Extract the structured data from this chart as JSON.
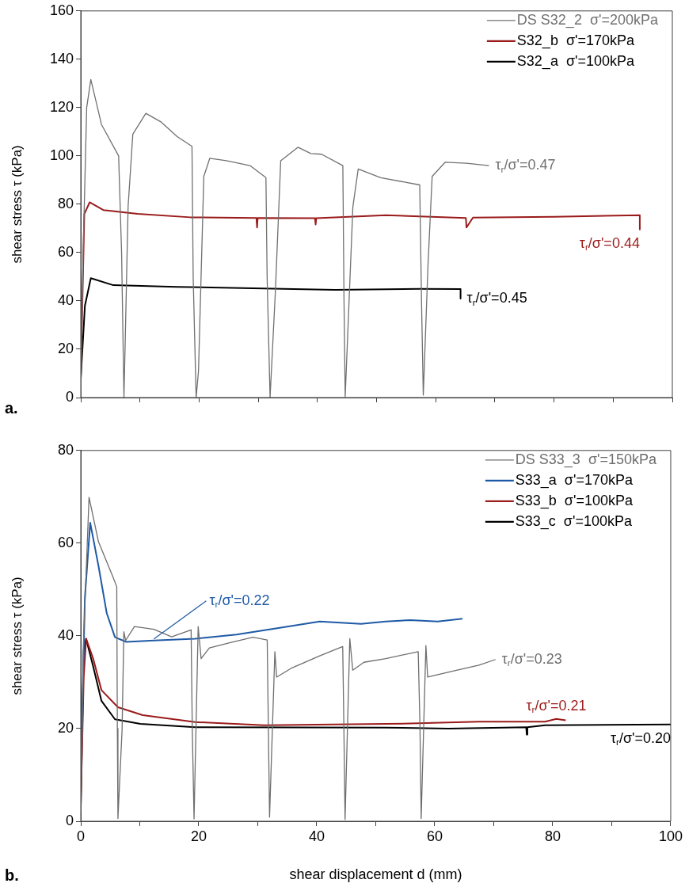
{
  "chart_data": [
    {
      "type": "line",
      "ylabel": "shear stress τ (kPa)",
      "xlim": [
        0,
        100
      ],
      "xticks": [
        0,
        {
          "value": 10,
          "label": null
        },
        20,
        {
          "value": 30,
          "label": null
        },
        40,
        {
          "value": 50,
          "label": null
        },
        60,
        {
          "value": 70,
          "label": null
        },
        80,
        {
          "value": 90,
          "label": null
        },
        100
      ],
      "ylim": [
        0,
        160
      ],
      "yticks": [
        0,
        20,
        40,
        60,
        80,
        100,
        120,
        140,
        160
      ],
      "tick_labels": "y",
      "grid": false,
      "legend": "top right",
      "line_style": "solid",
      "marker": "none",
      "series": [
        {
          "name": "DS S32_2  σ'=200kPa",
          "color": "#707070",
          "x": [
            0,
            0.4,
            1.0,
            1.7,
            3.5,
            6.4,
            6.9,
            7.3,
            7.5,
            8.0,
            8.8,
            11,
            13.6,
            16.3,
            18.8,
            19.0,
            19.5,
            19.9,
            20.8,
            21.8,
            24.6,
            28.6,
            31.3,
            31.5,
            32.0,
            32.9,
            33.8,
            36.7,
            38.9,
            40.7,
            44.3,
            44.5,
            44.7,
            46.0,
            46.9,
            50.7,
            57.3,
            57.6,
            57.9,
            58.7,
            59.4,
            61.6,
            65.2,
            69.0
          ],
          "values": [
            0,
            60,
            120,
            131.6,
            113,
            100,
            60,
            0,
            22,
            79,
            109,
            117.6,
            114,
            108,
            104,
            50,
            0,
            11,
            91.5,
            99,
            98,
            96,
            91,
            50,
            0,
            44,
            98,
            103.6,
            101,
            100.7,
            96,
            40,
            0.3,
            79,
            94.6,
            91,
            88,
            40,
            1,
            55,
            91.5,
            97.4,
            97,
            96
          ]
        },
        {
          "name": "S32_b  σ'=170kPa",
          "color": "#9b1b1b",
          "x": [
            0,
            0.6,
            1.5,
            3.8,
            9.6,
            18.5,
            29.7,
            29.8,
            29.9,
            39.6,
            39.7,
            39.8,
            51.6,
            65.1,
            65.2,
            66.3,
            80,
            94.5,
            94.5
          ],
          "values": [
            9,
            76,
            80.8,
            77.6,
            76,
            74.6,
            74.3,
            70.4,
            74.3,
            74.2,
            71.6,
            74.2,
            75.5,
            74.3,
            70.4,
            74.5,
            74.8,
            75.5,
            69.6
          ]
        },
        {
          "name": "S32_a  σ'=100kPa",
          "color": "#000000",
          "x": [
            0,
            0.7,
            1.7,
            5.5,
            16.2,
            43,
            57.3,
            64.2,
            64.2
          ],
          "values": [
            8,
            38,
            49.4,
            46.5,
            45.8,
            44.6,
            45.0,
            44.9,
            41
          ]
        }
      ],
      "annotations": [
        {
          "text": "τ$_{r}$/σ'=0.47",
          "x": 69.0,
          "y": 96
        },
        {
          "text": "τ$_{r}$/σ'=0.44",
          "x": 94.5,
          "y": 69.6
        },
        {
          "text": "τ$_{r}$/σ'=0.45",
          "x": 64.2,
          "y": 41
        },
        "a."
      ]
    },
    {
      "type": "line",
      "xlabel": "shear displacement d (mm)",
      "ylabel": "shear stress τ (kPa)",
      "xlim": [
        0,
        100
      ],
      "xticks": [
        0,
        {
          "value": 10,
          "label": null
        },
        20,
        {
          "value": 30,
          "label": null
        },
        40,
        {
          "value": 50,
          "label": null
        },
        60,
        {
          "value": 70,
          "label": null
        },
        80,
        {
          "value": 90,
          "label": null
        },
        100
      ],
      "ylim": [
        0,
        80
      ],
      "yticks": [
        0,
        20,
        40,
        60,
        80
      ],
      "grid": false,
      "legend": "top right",
      "line_style": "solid",
      "marker": "none",
      "series": [
        {
          "name": "DS S33_3  σ'=150kPa",
          "color": "#6e6e6e",
          "x": [
            0,
            0.5,
            1.4,
            3.0,
            5.4,
            6.1,
            6.2,
            6.3,
            7.0,
            7.3,
            7.6,
            9.1,
            12.4,
            15.4,
            18.7,
            18.9,
            19.2,
            19.9,
            20.4,
            21.8,
            25.5,
            29.2,
            31.6,
            31.8,
            32.0,
            32.9,
            33.2,
            35.8,
            40.5,
            44.4,
            44.6,
            44.8,
            45.6,
            46.1,
            48.0,
            51.7,
            57.2,
            57.5,
            57.7,
            58.5,
            58.8,
            62.8,
            67.5,
            70.3
          ],
          "values": [
            2,
            40,
            69.9,
            60.3,
            52.9,
            50.6,
            20,
            0.6,
            19.7,
            40.9,
            39,
            42,
            41.4,
            39.8,
            41.3,
            20,
            0.5,
            42,
            35.1,
            37.4,
            38.6,
            39.7,
            39.1,
            20,
            0.9,
            36.6,
            31.1,
            33.1,
            35.7,
            37.7,
            20,
            0.4,
            39.4,
            32.6,
            34.3,
            35.1,
            36.6,
            20,
            0.6,
            37.9,
            31.1,
            32.3,
            33.7,
            34.9
          ]
        },
        {
          "name": "S33_a  σ'=170kPa",
          "color": "#1f5aa6",
          "x": [
            0,
            0.7,
            1.6,
            3.0,
            4.4,
            5.8,
            7.7,
            12.4,
            19.4,
            26.4,
            33.5,
            40.5,
            47.5,
            51.7,
            55.8,
            60.5,
            64.7
          ],
          "values": [
            10,
            48.3,
            64.4,
            55.1,
            44.9,
            39.7,
            38.7,
            39.0,
            39.4,
            40.3,
            41.7,
            43.1,
            42.6,
            43.1,
            43.4,
            43.1,
            43.7
          ]
        },
        {
          "name": "S33_b  σ'=100kPa",
          "color": "#9b1b1b",
          "x": [
            0,
            0.5,
            0.9,
            2.1,
            3.5,
            6.3,
            10.5,
            19.4,
            31.1,
            51.7,
            55.8,
            67.5,
            78.7,
            80.6,
            82.2
          ],
          "values": [
            3.5,
            31,
            39.4,
            35.1,
            28.3,
            24.6,
            22.9,
            21.4,
            20.7,
            21.0,
            21.1,
            21.5,
            21.5,
            22.1,
            21.8
          ]
        },
        {
          "name": "S33_c  σ'=100kPa",
          "color": "#000000",
          "x": [
            0,
            0.5,
            0.9,
            2.1,
            3.5,
            5.8,
            10.1,
            19.4,
            51.7,
            62.3,
            75.5,
            75.6,
            75.7,
            78.7,
            100
          ],
          "values": [
            3,
            36.9,
            39.4,
            33.4,
            26,
            22,
            21,
            20.3,
            20.2,
            20.0,
            20.3,
            18.7,
            20.3,
            20.7,
            20.9
          ]
        }
      ],
      "annotations": [
        {
          "text": "τ$_{r}$/σ'=0.22",
          "x": 12.4,
          "y": 39.0
        },
        {
          "text": "τ$_{r}$/σ'=0.23",
          "x": 70.3,
          "y": 34.9
        },
        {
          "text": "τ$_{r}$/σ'=0.21",
          "x": 80.6,
          "y": 22.1
        },
        {
          "text": "τ$_{r}$/σ'=0.20",
          "x": 100,
          "y": 20.9
        },
        "b."
      ]
    }
  ]
}
